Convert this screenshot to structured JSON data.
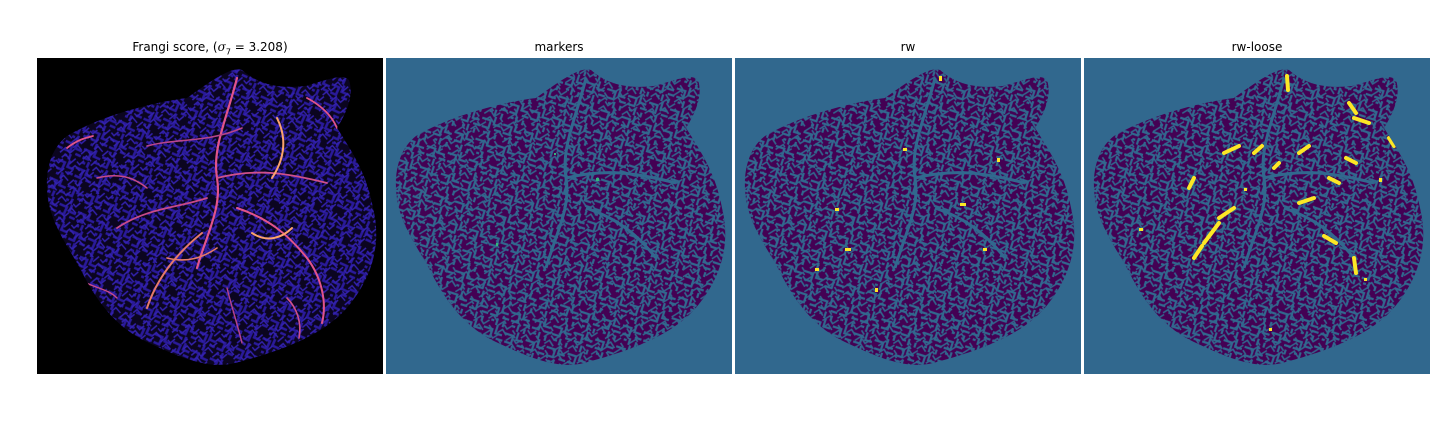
{
  "panels": [
    {
      "id": "frangi",
      "title_prefix": "Frangi score, (",
      "title_sigma": "σ",
      "title_sub": "7",
      "title_suffix": " = 3.208)",
      "colormap": "magma",
      "background_color": "#000000"
    },
    {
      "id": "markers",
      "title": "markers",
      "colormap": "viridis",
      "background_color": "#31688e"
    },
    {
      "id": "rw",
      "title": "rw",
      "colormap": "viridis",
      "background_color": "#31688e"
    },
    {
      "id": "rw-loose",
      "title": "rw-loose",
      "colormap": "viridis",
      "background_color": "#31688e"
    }
  ],
  "colors": {
    "tissue_dark": "#440154",
    "teal": "#31688e",
    "highlight_yellow": "#fde725",
    "highlight_green": "#35b779",
    "frangi_blue": "#2a1a9a",
    "frangi_pink": "#e2548a",
    "frangi_orange": "#fca36c"
  }
}
